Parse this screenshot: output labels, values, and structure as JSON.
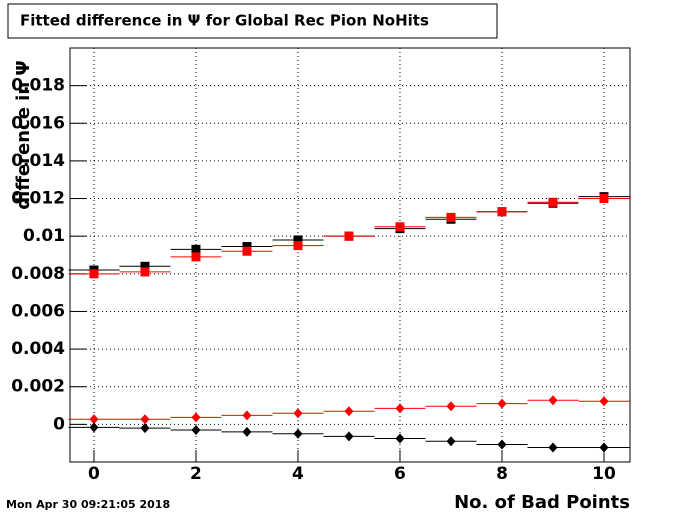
{
  "chart_data": {
    "type": "scatter",
    "title": "Fitted difference in  Ψ  for Global Rec Pion NoHits",
    "y_label": "difference in Ψ",
    "x_label": "No. of Bad Points",
    "timestamp": "Mon Apr 30 09:21:05 2018",
    "x": [
      0,
      1,
      2,
      3,
      4,
      5,
      6,
      7,
      8,
      9,
      10
    ],
    "series": [
      {
        "color": "#000000",
        "marker": "square",
        "values": [
          0.0082,
          0.0084,
          0.0093,
          0.00945,
          0.0098,
          0.01,
          0.0104,
          0.0109,
          0.0113,
          0.01175,
          0.0121
        ]
      },
      {
        "color": "#ff0000",
        "marker": "square",
        "values": [
          0.008,
          0.0081,
          0.0089,
          0.0092,
          0.0095,
          0.01,
          0.0105,
          0.011,
          0.0113,
          0.0118,
          0.012
        ]
      },
      {
        "color": "#ff0000",
        "marker": "diamond",
        "values": [
          0.00027,
          0.00027,
          0.00037,
          0.00048,
          0.00059,
          0.0007,
          0.00085,
          0.00096,
          0.0011,
          0.00128,
          0.00123
        ]
      },
      {
        "color": "#000000",
        "marker": "diamond",
        "values": [
          -0.00016,
          -0.0002,
          -0.0003,
          -0.0004,
          -0.0005,
          -0.00064,
          -0.00075,
          -0.0009,
          -0.00107,
          -0.00123,
          -0.00123
        ]
      }
    ],
    "xlim": [
      -0.47,
      10.51
    ],
    "ylim": [
      -0.002,
      0.02
    ],
    "xticks": [
      0,
      2,
      4,
      6,
      8,
      10
    ],
    "yticks": [
      0,
      0.002,
      0.004,
      0.006,
      0.008,
      0.01,
      0.012,
      0.014,
      0.016,
      0.018
    ],
    "grid": true
  }
}
